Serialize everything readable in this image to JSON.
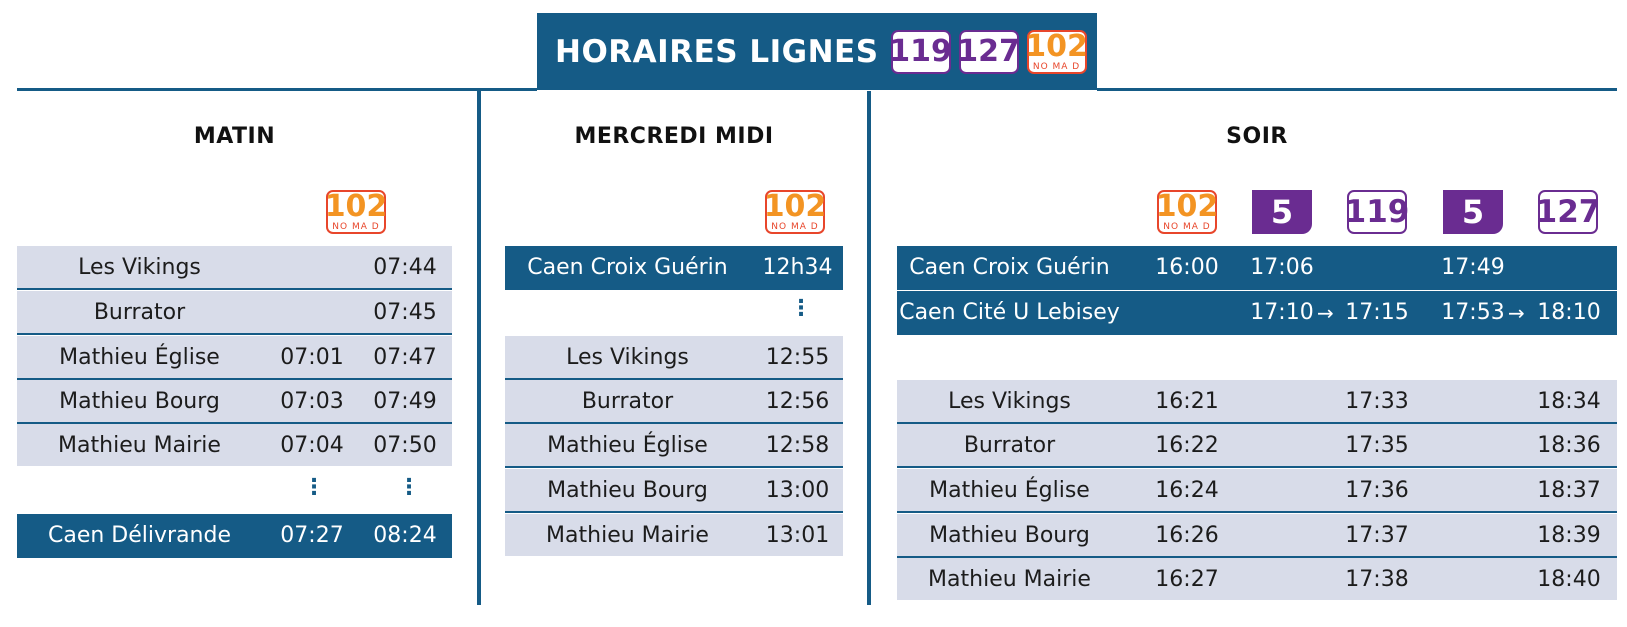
{
  "header": {
    "title": "HORAIRES LIGNES",
    "badges": [
      {
        "label": "119",
        "style": "purple"
      },
      {
        "label": "127",
        "style": "purple"
      },
      {
        "label": "102",
        "sub": "NO MA D",
        "style": "orange"
      }
    ]
  },
  "colors": {
    "primary": "#155b86",
    "row_bg": "#d8dce9",
    "purple": "#6a2c91",
    "orange": "#f39423",
    "red": "#e8462b"
  },
  "matin": {
    "title": "MATIN",
    "badge": {
      "label": "102",
      "sub": "NO MA D"
    },
    "rows": [
      {
        "stop": "Les Vikings",
        "t1": "",
        "t2": "07:44"
      },
      {
        "stop": "Burrator",
        "t1": "",
        "t2": "07:45"
      },
      {
        "stop": "Mathieu Église",
        "t1": "07:01",
        "t2": "07:47"
      },
      {
        "stop": "Mathieu Bourg",
        "t1": "07:03",
        "t2": "07:49"
      },
      {
        "stop": "Mathieu Mairie",
        "t1": "07:04",
        "t2": "07:50"
      }
    ],
    "dots": "⋮",
    "final": {
      "stop": "Caen Délivrande",
      "t1": "07:27",
      "t2": "08:24"
    }
  },
  "midi": {
    "title": "MERCREDI MIDI",
    "badge": {
      "label": "102",
      "sub": "NO MA D"
    },
    "first": {
      "stop": "Caen Croix Guérin",
      "t": "12h34"
    },
    "dots": "⋮",
    "rows": [
      {
        "stop": "Les Vikings",
        "t": "12:55"
      },
      {
        "stop": "Burrator",
        "t": "12:56"
      },
      {
        "stop": "Mathieu Église",
        "t": "12:58"
      },
      {
        "stop": "Mathieu Bourg",
        "t": "13:00"
      },
      {
        "stop": "Mathieu Mairie",
        "t": "13:01"
      }
    ]
  },
  "soir": {
    "title": "SOIR",
    "badges": [
      {
        "label": "102",
        "sub": "NO MA D",
        "style": "orange"
      },
      {
        "label": "5",
        "style": "five"
      },
      {
        "label": "119",
        "style": "purple"
      },
      {
        "label": "5",
        "style": "five"
      },
      {
        "label": "127",
        "style": "purple"
      }
    ],
    "arrow": "→",
    "dark_rows": [
      {
        "stop": "Caen Croix Guérin",
        "t1": "16:00",
        "t2": "17:06",
        "t3": "",
        "t4": "17:49",
        "t5": ""
      },
      {
        "stop": "Caen Cité U Lebisey",
        "t1": "",
        "t2": "17:10",
        "t3": "17:15",
        "t4": "17:53",
        "t5": "18:10"
      }
    ],
    "rows": [
      {
        "stop": "Les Vikings",
        "t1": "16:21",
        "t2": "17:33",
        "t3": "18:34"
      },
      {
        "stop": "Burrator",
        "t1": "16:22",
        "t2": "17:35",
        "t3": "18:36"
      },
      {
        "stop": "Mathieu Église",
        "t1": "16:24",
        "t2": "17:36",
        "t3": "18:37"
      },
      {
        "stop": "Mathieu Bourg",
        "t1": "16:26",
        "t2": "17:37",
        "t3": "18:39"
      },
      {
        "stop": "Mathieu Mairie",
        "t1": "16:27",
        "t2": "17:38",
        "t3": "18:40"
      }
    ]
  }
}
